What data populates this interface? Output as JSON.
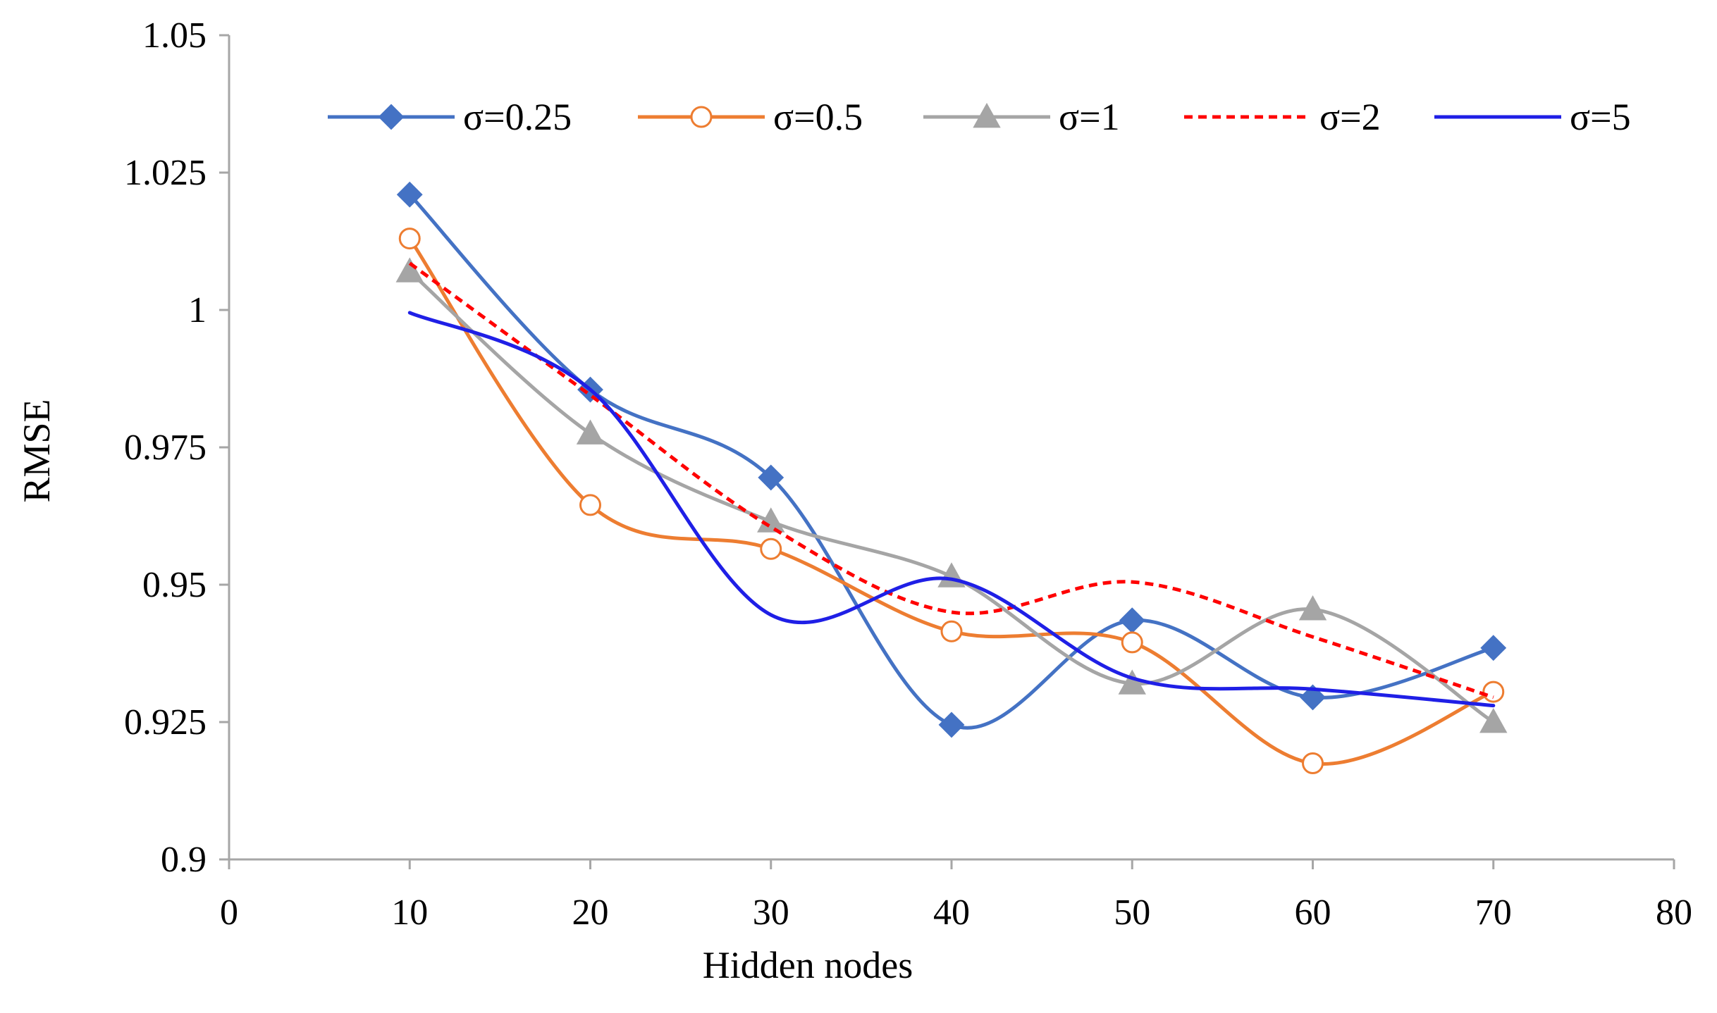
{
  "chart_data": {
    "type": "line",
    "title": "",
    "xlabel": "Hidden nodes",
    "ylabel": "RMSE",
    "xlim": [
      0,
      80
    ],
    "ylim": [
      0.9,
      1.05
    ],
    "x_ticks": [
      0,
      10,
      20,
      30,
      40,
      50,
      60,
      70,
      80
    ],
    "x_tick_labels": [
      "0",
      "10",
      "20",
      "30",
      "40",
      "50",
      "60",
      "70",
      "80"
    ],
    "y_ticks": [
      0.9,
      0.925,
      0.95,
      0.975,
      1.0,
      1.025,
      1.05
    ],
    "y_tick_labels": [
      "0.9",
      "0.925",
      "0.95",
      "0.975",
      "1",
      "1.025",
      "1.05"
    ],
    "grid": false,
    "legend_position": "top",
    "x": [
      10,
      20,
      30,
      40,
      50,
      60,
      70
    ],
    "series": [
      {
        "name": "σ=0.25",
        "color": "#4472C4",
        "marker": "diamond",
        "marker_fill": "#4472C4",
        "dashed": false,
        "values": [
          1.021,
          0.9855,
          0.9695,
          0.9245,
          0.9435,
          0.9295,
          0.9385
        ]
      },
      {
        "name": "σ=0.5",
        "color": "#ED7D31",
        "marker": "circle",
        "marker_fill": "#ffffff",
        "dashed": false,
        "values": [
          1.013,
          0.9645,
          0.9565,
          0.9415,
          0.9395,
          0.9175,
          0.9305
        ]
      },
      {
        "name": "σ=1",
        "color": "#A5A5A5",
        "marker": "triangle",
        "marker_fill": "#A5A5A5",
        "dashed": false,
        "values": [
          1.007,
          0.9775,
          0.9615,
          0.9515,
          0.932,
          0.9455,
          0.925
        ]
      },
      {
        "name": "σ=2",
        "color": "#FF0000",
        "marker": "none",
        "marker_fill": "",
        "dashed": true,
        "values": [
          1.0085,
          0.9845,
          0.9605,
          0.945,
          0.9505,
          0.9405,
          0.9295
        ]
      },
      {
        "name": "σ=5",
        "color": "#1F1FE6",
        "marker": "none",
        "marker_fill": "",
        "dashed": false,
        "values": [
          0.9995,
          0.9855,
          0.9445,
          0.951,
          0.933,
          0.931,
          0.928
        ]
      }
    ]
  }
}
